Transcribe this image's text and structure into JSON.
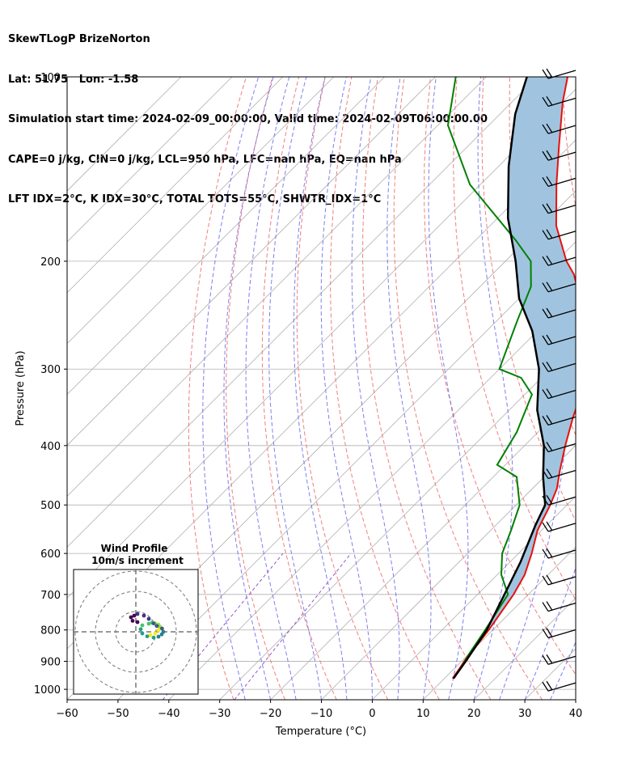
{
  "header": {
    "line1": "SkewTLogP BrizeNorton",
    "line2": "Lat: 51.75   Lon: -1.58",
    "line3": "Simulation start time: 2024-02-09_00:00:00, Valid time: 2024-02-09T06:00:00.00",
    "line4": "CAPE=0 j/kg, CIN=0 j/kg, LCL=950 hPa, LFC=nan hPa, EQ=nan hPa",
    "line5": "LFT IDX=2°C, K IDX=30°C, TOTAL TOTS=55°C, SHWTR_IDX=1°C"
  },
  "chart_data": [
    {
      "type": "line",
      "subtype": "skew-t log-p",
      "xlabel": "Temperature (°C)",
      "ylabel": "Pressure (hPa)",
      "xlim": [
        -60,
        40
      ],
      "ylim": [
        1040,
        100
      ],
      "y_scale": "log",
      "skew": "isotherms slanted 45° to the right",
      "x_ticks": [
        "−60",
        "−50",
        "−40",
        "−30",
        "−20",
        "−10",
        "0",
        "10",
        "20",
        "30",
        "40"
      ],
      "y_ticks": [
        "100",
        "200",
        "300",
        "400",
        "500",
        "600",
        "700",
        "800",
        "900",
        "1000"
      ],
      "grid": true,
      "colors": {
        "temperature": "#e8110f",
        "dewpoint": "#008000",
        "parcel": "#000000",
        "shading": "#a0c4df",
        "dry_adiabats": "#f07070",
        "moist_adiabats": "#7070ee",
        "mixing_ratio": "#9955cc",
        "isotherms": "#b0b0b0"
      },
      "series": [
        {
          "role": "temperature",
          "points": [
            [
              11.6,
              960
            ],
            [
              10.6,
              900
            ],
            [
              9.2,
              800
            ],
            [
              7.1,
              700
            ],
            [
              5.4,
              650
            ],
            [
              2.6,
              600
            ],
            [
              -0.8,
              550
            ],
            [
              -3.3,
              500
            ],
            [
              -5.2,
              470
            ],
            [
              -8.1,
              440
            ],
            [
              -12.0,
              400
            ],
            [
              -16.0,
              360
            ],
            [
              -19.0,
              330
            ],
            [
              -21.0,
              300
            ],
            [
              -25.0,
              270
            ],
            [
              -30.0,
              250
            ],
            [
              -38.0,
              230
            ],
            [
              -44.0,
              210
            ],
            [
              -48.0,
              200
            ],
            [
              -57.0,
              175
            ],
            [
              -65.0,
              150
            ],
            [
              -72.0,
              130
            ],
            [
              -80.0,
              110
            ],
            [
              -84.0,
              100
            ]
          ]
        },
        {
          "role": "dewpoint",
          "points": [
            [
              11.8,
              960
            ],
            [
              10.5,
              900
            ],
            [
              8.5,
              800
            ],
            [
              6.0,
              700
            ],
            [
              0.8,
              650
            ],
            [
              -3.2,
              600
            ],
            [
              -6.0,
              550
            ],
            [
              -9.3,
              500
            ],
            [
              -15.4,
              450
            ],
            [
              -21.6,
              430
            ],
            [
              -24.2,
              380
            ],
            [
              -28.6,
              330
            ],
            [
              -34.0,
              310
            ],
            [
              -40.0,
              300
            ],
            [
              -46.0,
              250
            ],
            [
              -50.0,
              220
            ],
            [
              -55.0,
              200
            ],
            [
              -62.0,
              185
            ],
            [
              -82.0,
              150
            ],
            [
              -98.0,
              120
            ],
            [
              -106.0,
              100
            ]
          ]
        },
        {
          "role": "parcel",
          "points": [
            [
              11.8,
              960
            ],
            [
              10.8,
              900
            ],
            [
              8.8,
              800
            ],
            [
              5.3,
              700
            ],
            [
              2.1,
              620
            ],
            [
              -2.2,
              540
            ],
            [
              -4.3,
              500
            ],
            [
              -10.2,
              450
            ],
            [
              -16.2,
              400
            ],
            [
              -24.5,
              350
            ],
            [
              -32.2,
              300
            ],
            [
              -41.0,
              260
            ],
            [
              -50.0,
              230
            ],
            [
              -58.0,
              200
            ],
            [
              -68.0,
              170
            ],
            [
              -78.0,
              140
            ],
            [
              -87.0,
              115
            ],
            [
              -92.0,
              100
            ]
          ]
        }
      ],
      "wind_barbs": "barbs plotted along the right edge for every level from 1000 to 100 hPa"
    },
    {
      "type": "scatter",
      "subtype": "hodograph",
      "title": "Wind Profile",
      "subtitle": "10m/s increment",
      "rings_ms": [
        10,
        20,
        30
      ],
      "points": [
        [
          2.0,
          -2.0
        ],
        [
          3.5,
          -1.5
        ],
        [
          4.5,
          -0.5
        ],
        [
          5.0,
          0.5
        ],
        [
          4.5,
          1.2
        ],
        [
          3.5,
          1.6
        ],
        [
          2.5,
          1.8
        ],
        [
          1.5,
          1.5
        ],
        [
          -0.5,
          1.0
        ],
        [
          -1.0,
          -0.2
        ],
        [
          -0.5,
          -1.5
        ],
        [
          1.0,
          -2.4
        ],
        [
          3.0,
          -2.8
        ],
        [
          4.5,
          -2.5
        ],
        [
          5.5,
          -1.8
        ],
        [
          6.0,
          -1.0
        ],
        [
          5.6,
          0.0
        ],
        [
          4.0,
          0.8
        ],
        [
          3.0,
          1.6
        ],
        [
          1.5,
          3.0
        ],
        [
          0.0,
          4.0
        ],
        [
          -2.0,
          4.5
        ],
        [
          -3.0,
          4.0
        ],
        [
          -4.0,
          3.5
        ],
        [
          -3.5,
          2.4
        ],
        [
          -2.0,
          2.0
        ]
      ]
    }
  ]
}
